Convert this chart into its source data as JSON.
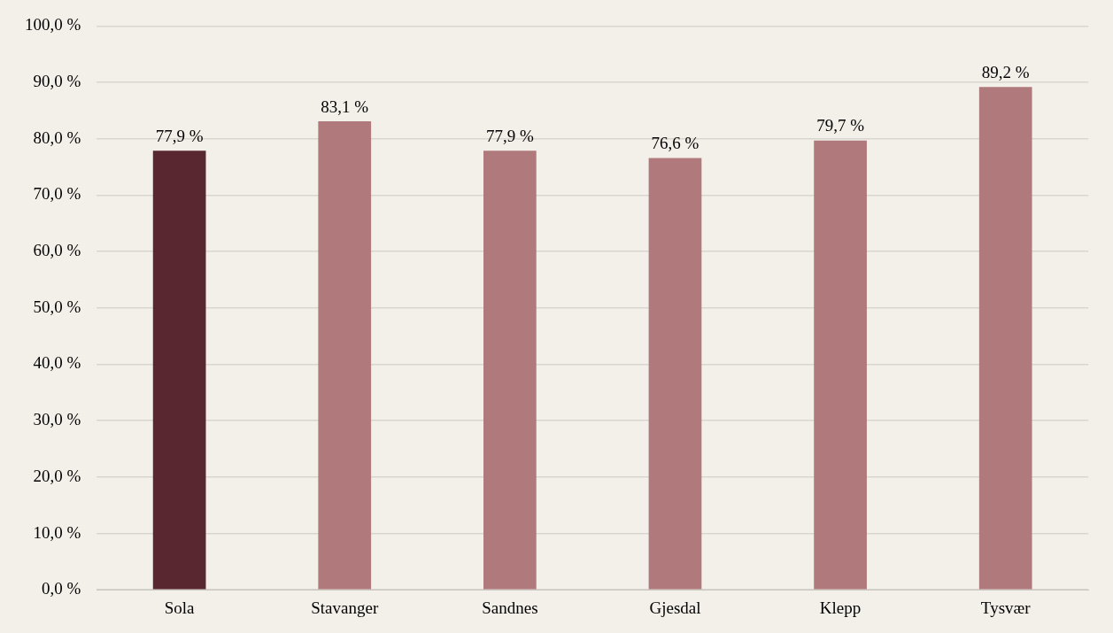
{
  "chart_data": {
    "type": "bar",
    "categories": [
      "Sola",
      "Stavanger",
      "Sandnes",
      "Gjesdal",
      "Klepp",
      "Tysvær"
    ],
    "values": [
      77.9,
      83.1,
      77.9,
      76.6,
      79.7,
      89.2
    ],
    "colors": [
      "#58272f",
      "#b07a7d",
      "#b07a7d",
      "#b07a7d",
      "#b07a7d",
      "#b07a7d"
    ],
    "value_labels": [
      "77,9 %",
      "83,1 %",
      "77,9 %",
      "76,6 %",
      "79,7 %",
      "89,2 %"
    ],
    "ylim": [
      0,
      100
    ],
    "yticks": [
      {
        "value": 0,
        "label": "0,0 %"
      },
      {
        "value": 10,
        "label": "10,0 %"
      },
      {
        "value": 20,
        "label": "20,0 %"
      },
      {
        "value": 30,
        "label": "30,0 %"
      },
      {
        "value": 40,
        "label": "40,0 %"
      },
      {
        "value": 50,
        "label": "50,0 %"
      },
      {
        "value": 60,
        "label": "60,0 %"
      },
      {
        "value": 70,
        "label": "70,0 %"
      },
      {
        "value": 80,
        "label": "80,0 %"
      },
      {
        "value": 90,
        "label": "90,0 %"
      },
      {
        "value": 100,
        "label": "100,0 %"
      }
    ],
    "grid": "y",
    "legend": false
  }
}
